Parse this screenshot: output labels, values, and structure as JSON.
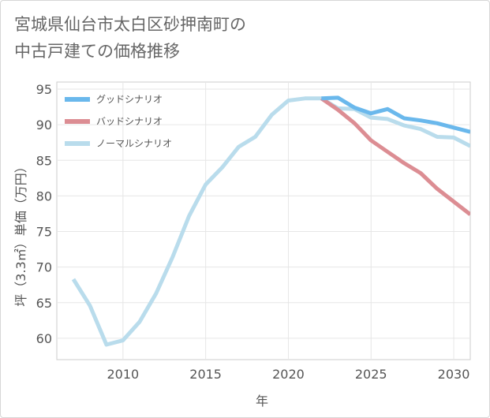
{
  "title_lines": [
    "宮城県仙台市太白区砂押南町の",
    "中古戸建ての価格推移"
  ],
  "chart_data": {
    "type": "line",
    "title": "宮城県仙台市太白区砂押南町の中古戸建ての価格推移",
    "xlabel": "年",
    "ylabel": "坪（3.3㎡）単価（万円）",
    "xlim": [
      2006,
      2031
    ],
    "ylim": [
      57,
      96
    ],
    "xticks": [
      2010,
      2015,
      2020,
      2025,
      2030
    ],
    "yticks": [
      60,
      65,
      70,
      75,
      80,
      85,
      90,
      95
    ],
    "grid": true,
    "legend_position": "top-left",
    "series": [
      {
        "name": "グッドシナリオ",
        "color": "#6ab8ec",
        "x": [
          2022,
          2023,
          2024,
          2025,
          2026,
          2027,
          2028,
          2029,
          2030,
          2031
        ],
        "y": [
          93.7,
          93.8,
          92.4,
          91.6,
          92.2,
          90.9,
          90.6,
          90.2,
          89.6,
          89.0
        ]
      },
      {
        "name": "バッドシナリオ",
        "color": "#dc8d93",
        "x": [
          2022,
          2023,
          2024,
          2025,
          2026,
          2027,
          2028,
          2029,
          2030,
          2031
        ],
        "y": [
          93.7,
          92.1,
          90.2,
          87.8,
          86.2,
          84.6,
          83.2,
          81.0,
          79.2,
          77.4
        ]
      },
      {
        "name": "ノーマルシナリオ",
        "color": "#b9dcec",
        "x": [
          2007,
          2008,
          2009,
          2010,
          2011,
          2012,
          2013,
          2014,
          2015,
          2016,
          2017,
          2018,
          2019,
          2020,
          2021,
          2022,
          2023,
          2024,
          2025,
          2026,
          2027,
          2028,
          2029,
          2030,
          2031
        ],
        "y": [
          68.3,
          64.6,
          59.1,
          59.7,
          62.3,
          66.3,
          71.4,
          77.2,
          81.6,
          84.0,
          86.9,
          88.3,
          91.4,
          93.4,
          93.7,
          93.7,
          92.3,
          92.2,
          91.0,
          90.8,
          89.9,
          89.4,
          88.3,
          88.2,
          87.0
        ]
      }
    ]
  }
}
